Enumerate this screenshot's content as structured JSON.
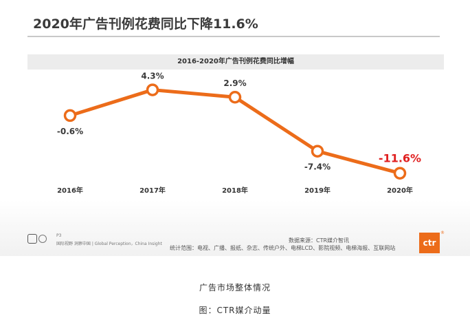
{
  "slide": {
    "title": "2020年广告刊例花费同比下降11.6%",
    "page": "P3",
    "tagline": "国际视野 洞察中国 | Global Perception，China Insight",
    "source": "数据来源：CTR媒介智讯",
    "scope": "统计范围：电视、广播、报纸、杂志、传统户外、电梯LCD、影院视频、电梯海报、互联网站",
    "logo_text": "ctr",
    "logo_mark": "®"
  },
  "captions": {
    "line1": "广告市场整体情况",
    "line2": "图：CTR媒介动量"
  },
  "colors": {
    "line": "#ec6c1a",
    "highlight_label": "#e02020",
    "label": "#3a3a3a"
  },
  "chart_data": {
    "type": "line",
    "title": "2016-2020年广告刊例花费同比增幅",
    "categories": [
      "2016年",
      "2017年",
      "2018年",
      "2019年",
      "2020年"
    ],
    "values": [
      -0.6,
      4.3,
      2.9,
      -7.4,
      -11.6
    ],
    "labels": [
      "-0.6%",
      "4.3%",
      "2.9%",
      "-7.4%",
      "-11.6%"
    ],
    "highlight_index": 4,
    "ylim": [
      -14,
      7
    ],
    "xlabel": "",
    "ylabel": "",
    "grid": false,
    "legend": "none"
  }
}
